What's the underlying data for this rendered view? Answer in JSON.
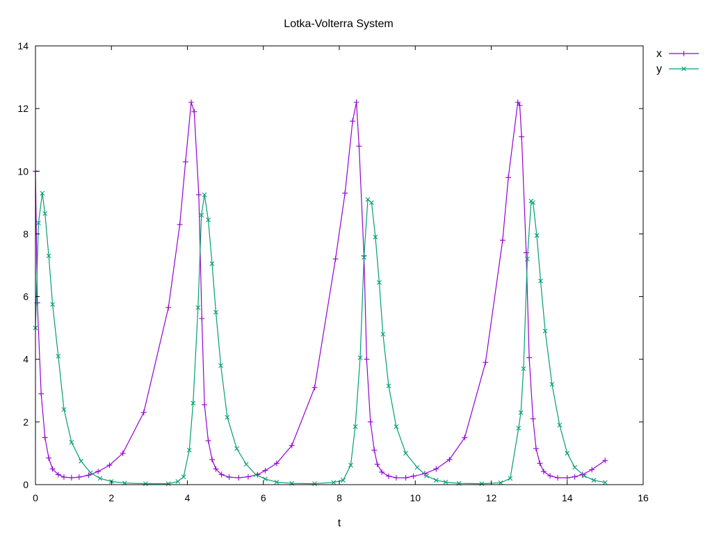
{
  "chart_data": {
    "type": "line",
    "title": "Lotka-Volterra System",
    "xlabel": "t",
    "ylabel": "",
    "xlim": [
      0,
      16
    ],
    "ylim": [
      0,
      14
    ],
    "xticks": [
      0,
      2,
      4,
      6,
      8,
      10,
      12,
      14,
      16
    ],
    "yticks": [
      0,
      2,
      4,
      6,
      8,
      10,
      12,
      14
    ],
    "grid": false,
    "legend_position": "top-right-outside",
    "series": [
      {
        "name": "x",
        "color": "#9400d3",
        "marker": "plus",
        "points": [
          [
            0.0,
            10.0
          ],
          [
            0.05,
            5.8
          ],
          [
            0.15,
            2.9
          ],
          [
            0.25,
            1.5
          ],
          [
            0.35,
            0.85
          ],
          [
            0.45,
            0.5
          ],
          [
            0.6,
            0.32
          ],
          [
            0.75,
            0.24
          ],
          [
            0.95,
            0.22
          ],
          [
            1.15,
            0.24
          ],
          [
            1.4,
            0.3
          ],
          [
            1.65,
            0.42
          ],
          [
            1.95,
            0.62
          ],
          [
            2.3,
            1.0
          ],
          [
            2.85,
            2.3
          ],
          [
            3.5,
            5.65
          ],
          [
            3.8,
            8.3
          ],
          [
            3.95,
            10.3
          ],
          [
            4.1,
            12.2
          ],
          [
            4.18,
            11.9
          ],
          [
            4.3,
            9.25
          ],
          [
            4.38,
            5.3
          ],
          [
            4.45,
            2.55
          ],
          [
            4.55,
            1.4
          ],
          [
            4.65,
            0.8
          ],
          [
            4.75,
            0.5
          ],
          [
            4.9,
            0.32
          ],
          [
            5.1,
            0.24
          ],
          [
            5.35,
            0.22
          ],
          [
            5.6,
            0.25
          ],
          [
            5.85,
            0.32
          ],
          [
            6.05,
            0.45
          ],
          [
            6.35,
            0.68
          ],
          [
            6.75,
            1.25
          ],
          [
            7.35,
            3.1
          ],
          [
            7.9,
            7.2
          ],
          [
            8.15,
            9.3
          ],
          [
            8.35,
            11.6
          ],
          [
            8.45,
            12.2
          ],
          [
            8.52,
            10.8
          ],
          [
            8.65,
            7.3
          ],
          [
            8.72,
            4.0
          ],
          [
            8.82,
            2.0
          ],
          [
            8.92,
            1.1
          ],
          [
            9.0,
            0.65
          ],
          [
            9.12,
            0.4
          ],
          [
            9.3,
            0.27
          ],
          [
            9.5,
            0.22
          ],
          [
            9.75,
            0.22
          ],
          [
            9.95,
            0.27
          ],
          [
            10.25,
            0.35
          ],
          [
            10.55,
            0.5
          ],
          [
            10.9,
            0.8
          ],
          [
            11.3,
            1.5
          ],
          [
            11.85,
            3.9
          ],
          [
            12.3,
            7.8
          ],
          [
            12.45,
            9.8
          ],
          [
            12.7,
            12.2
          ],
          [
            12.75,
            12.1
          ],
          [
            12.8,
            11.1
          ],
          [
            12.92,
            7.4
          ],
          [
            13.0,
            4.05
          ],
          [
            13.1,
            2.1
          ],
          [
            13.18,
            1.15
          ],
          [
            13.28,
            0.68
          ],
          [
            13.38,
            0.42
          ],
          [
            13.55,
            0.28
          ],
          [
            13.75,
            0.22
          ],
          [
            14.0,
            0.22
          ],
          [
            14.2,
            0.25
          ],
          [
            14.4,
            0.32
          ],
          [
            14.65,
            0.48
          ],
          [
            15.0,
            0.77
          ]
        ]
      },
      {
        "name": "y",
        "color": "#009e73",
        "marker": "cross",
        "points": [
          [
            0.0,
            5.0
          ],
          [
            0.08,
            8.35
          ],
          [
            0.18,
            9.3
          ],
          [
            0.25,
            8.65
          ],
          [
            0.35,
            7.3
          ],
          [
            0.45,
            5.75
          ],
          [
            0.6,
            4.1
          ],
          [
            0.75,
            2.4
          ],
          [
            0.95,
            1.35
          ],
          [
            1.2,
            0.75
          ],
          [
            1.45,
            0.38
          ],
          [
            1.7,
            0.2
          ],
          [
            2.0,
            0.1
          ],
          [
            2.35,
            0.05
          ],
          [
            2.9,
            0.03
          ],
          [
            3.5,
            0.03
          ],
          [
            3.75,
            0.1
          ],
          [
            3.9,
            0.25
          ],
          [
            4.05,
            1.1
          ],
          [
            4.15,
            2.6
          ],
          [
            4.28,
            5.65
          ],
          [
            4.37,
            8.6
          ],
          [
            4.45,
            9.25
          ],
          [
            4.55,
            8.45
          ],
          [
            4.65,
            7.05
          ],
          [
            4.75,
            5.5
          ],
          [
            4.88,
            3.8
          ],
          [
            5.05,
            2.15
          ],
          [
            5.3,
            1.15
          ],
          [
            5.55,
            0.65
          ],
          [
            5.8,
            0.32
          ],
          [
            6.05,
            0.18
          ],
          [
            6.35,
            0.08
          ],
          [
            6.75,
            0.04
          ],
          [
            7.35,
            0.03
          ],
          [
            7.85,
            0.07
          ],
          [
            8.1,
            0.14
          ],
          [
            8.3,
            0.62
          ],
          [
            8.42,
            1.85
          ],
          [
            8.55,
            4.05
          ],
          [
            8.65,
            7.25
          ],
          [
            8.75,
            9.1
          ],
          [
            8.85,
            9.0
          ],
          [
            8.95,
            7.9
          ],
          [
            9.05,
            6.45
          ],
          [
            9.15,
            4.8
          ],
          [
            9.3,
            3.15
          ],
          [
            9.5,
            1.85
          ],
          [
            9.75,
            1.0
          ],
          [
            10.05,
            0.55
          ],
          [
            10.3,
            0.28
          ],
          [
            10.55,
            0.14
          ],
          [
            10.8,
            0.08
          ],
          [
            11.15,
            0.04
          ],
          [
            11.75,
            0.03
          ],
          [
            12.25,
            0.06
          ],
          [
            12.5,
            0.2
          ],
          [
            12.72,
            1.8
          ],
          [
            12.78,
            2.3
          ],
          [
            12.85,
            3.7
          ],
          [
            12.95,
            7.2
          ],
          [
            13.05,
            9.05
          ],
          [
            13.1,
            9.0
          ],
          [
            13.2,
            7.95
          ],
          [
            13.3,
            6.5
          ],
          [
            13.42,
            4.9
          ],
          [
            13.6,
            3.2
          ],
          [
            13.8,
            1.9
          ],
          [
            14.0,
            1.0
          ],
          [
            14.2,
            0.55
          ],
          [
            14.45,
            0.28
          ],
          [
            14.7,
            0.14
          ],
          [
            15.0,
            0.07
          ]
        ]
      }
    ]
  }
}
